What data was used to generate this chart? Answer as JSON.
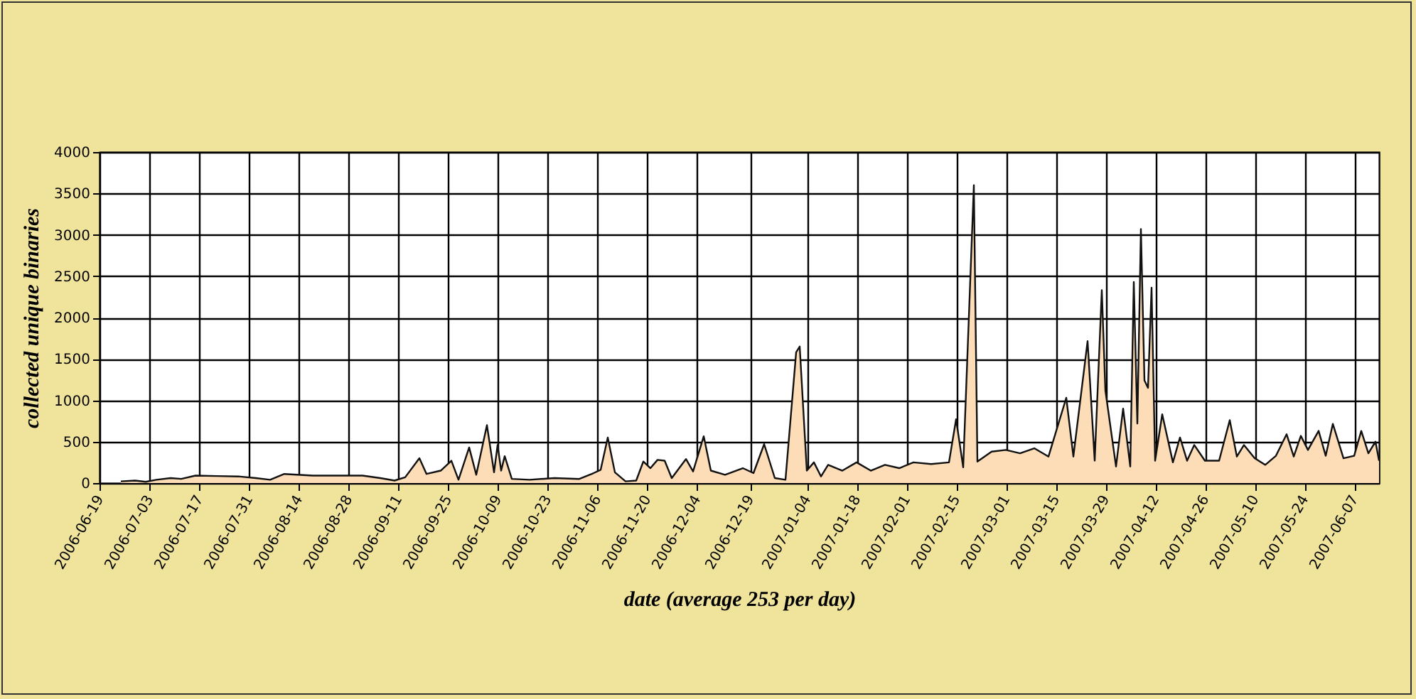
{
  "chart_data": {
    "type": "area",
    "xlabel": "date (average 253 per day)",
    "ylabel": "collected unique binaries",
    "xlim": [
      "2006-06-19",
      "2007-06-14"
    ],
    "xticks": [
      "2006-06-19",
      "2006-07-03",
      "2006-07-17",
      "2006-07-31",
      "2006-08-14",
      "2006-08-28",
      "2006-09-11",
      "2006-09-25",
      "2006-10-09",
      "2006-10-23",
      "2006-11-06",
      "2006-11-20",
      "2006-12-04",
      "2006-12-19",
      "2007-01-04",
      "2007-01-18",
      "2007-02-01",
      "2007-02-15",
      "2007-03-01",
      "2007-03-15",
      "2007-03-29",
      "2007-04-12",
      "2007-04-26",
      "2007-05-10",
      "2007-05-24",
      "2007-06-07"
    ],
    "ylim": [
      0,
      4000
    ],
    "yticks": [
      0,
      500,
      1000,
      1500,
      2000,
      2500,
      3000,
      3500,
      4000
    ],
    "grid": true,
    "x": [
      "2006-06-25",
      "2006-06-29",
      "2006-07-02",
      "2006-07-05",
      "2006-07-09",
      "2006-07-12",
      "2006-07-16",
      "2006-07-22",
      "2006-07-28",
      "2006-08-02",
      "2006-08-06",
      "2006-08-10",
      "2006-08-18",
      "2006-08-25",
      "2006-09-01",
      "2006-09-06",
      "2006-09-10",
      "2006-09-13",
      "2006-09-17",
      "2006-09-19",
      "2006-09-23",
      "2006-09-26",
      "2006-09-28",
      "2006-10-01",
      "2006-10-03",
      "2006-10-06",
      "2006-10-08",
      "2006-10-09",
      "2006-10-10",
      "2006-10-11",
      "2006-10-13",
      "2006-10-18",
      "2006-10-25",
      "2006-11-01",
      "2006-11-05",
      "2006-11-07",
      "2006-11-09",
      "2006-11-11",
      "2006-11-14",
      "2006-11-17",
      "2006-11-19",
      "2006-11-21",
      "2006-11-23",
      "2006-11-25",
      "2006-11-27",
      "2006-12-01",
      "2006-12-03",
      "2006-12-06",
      "2006-12-08",
      "2006-12-12",
      "2006-12-17",
      "2006-12-20",
      "2006-12-23",
      "2006-12-26",
      "2006-12-29",
      "2007-01-01",
      "2007-01-02",
      "2007-01-04",
      "2007-01-06",
      "2007-01-08",
      "2007-01-10",
      "2007-01-14",
      "2007-01-18",
      "2007-01-22",
      "2007-01-26",
      "2007-01-30",
      "2007-02-03",
      "2007-02-08",
      "2007-02-13",
      "2007-02-15",
      "2007-02-17",
      "2007-02-20",
      "2007-02-21",
      "2007-02-25",
      "2007-03-01",
      "2007-03-05",
      "2007-03-09",
      "2007-03-13",
      "2007-03-18",
      "2007-03-20",
      "2007-03-24",
      "2007-03-26",
      "2007-03-28",
      "2007-03-29",
      "2007-04-01",
      "2007-04-03",
      "2007-04-05",
      "2007-04-06",
      "2007-04-07",
      "2007-04-08",
      "2007-04-09",
      "2007-04-10",
      "2007-04-11",
      "2007-04-12",
      "2007-04-14",
      "2007-04-17",
      "2007-04-19",
      "2007-04-21",
      "2007-04-23",
      "2007-04-26",
      "2007-04-30",
      "2007-05-03",
      "2007-05-05",
      "2007-05-07",
      "2007-05-10",
      "2007-05-13",
      "2007-05-16",
      "2007-05-19",
      "2007-05-21",
      "2007-05-23",
      "2007-05-25",
      "2007-05-28",
      "2007-05-30",
      "2007-06-01",
      "2007-06-04",
      "2007-06-07",
      "2007-06-09",
      "2007-06-11",
      "2007-06-13",
      "2007-06-14"
    ],
    "series": [
      {
        "color": "#fddcb8",
        "values": [
          20,
          30,
          15,
          40,
          60,
          50,
          90,
          85,
          80,
          60,
          40,
          110,
          90,
          90,
          90,
          60,
          30,
          70,
          300,
          110,
          150,
          270,
          40,
          430,
          100,
          700,
          130,
          460,
          150,
          325,
          50,
          40,
          60,
          50,
          120,
          160,
          550,
          130,
          20,
          30,
          260,
          180,
          280,
          270,
          60,
          290,
          140,
          565,
          150,
          100,
          180,
          120,
          470,
          60,
          40,
          1580,
          1650,
          150,
          250,
          80,
          220,
          150,
          250,
          150,
          220,
          180,
          250,
          230,
          250,
          770,
          190,
          3600,
          260,
          380,
          400,
          360,
          420,
          320,
          1030,
          320,
          1715,
          270,
          2330,
          1120,
          200,
          900,
          200,
          2430,
          720,
          3070,
          1240,
          1150,
          2360,
          270,
          830,
          250,
          550,
          270,
          460,
          270,
          270,
          760,
          320,
          460,
          300,
          220,
          330,
          590,
          320,
          570,
          400,
          630,
          330,
          715,
          300,
          330,
          630,
          360,
          500,
          270
        ]
      }
    ]
  }
}
